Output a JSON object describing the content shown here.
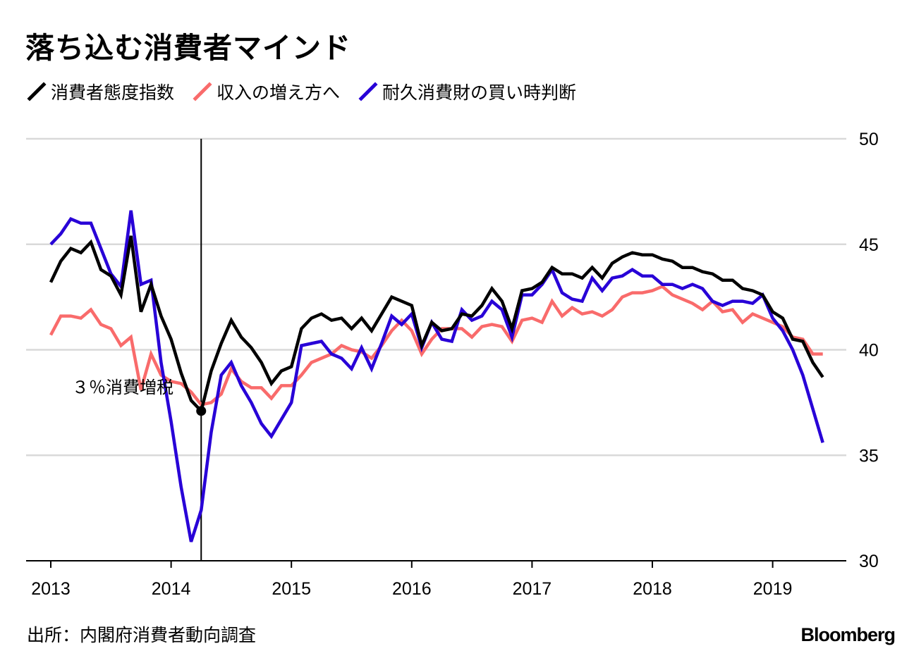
{
  "title": "落ち込む消費者マインド",
  "source": "出所：内閣府消費者動向調査",
  "brand": "Bloomberg",
  "chart_data": {
    "type": "line",
    "title": "落ち込む消費者マインド",
    "ylim": [
      30,
      50
    ],
    "yticks": [
      30,
      35,
      40,
      45,
      50
    ],
    "xlim": [
      2013,
      2019.58
    ],
    "xticks": [
      2013,
      2014,
      2015,
      2016,
      2017,
      2018,
      2019
    ],
    "xtick_labels": [
      "2013",
      "2014",
      "2015",
      "2016",
      "2017",
      "2018",
      "2019"
    ],
    "grid": true,
    "legend": "top-left",
    "annotation": {
      "label": "３％消費増税",
      "x": 2014.25,
      "y": 37.1
    },
    "series": [
      {
        "name": "消費者態度指数",
        "color": "#000000",
        "values": [
          43.2,
          44.2,
          44.8,
          44.6,
          45.1,
          43.8,
          43.5,
          42.6,
          45.4,
          41.8,
          43.1,
          41.6,
          40.5,
          38.9,
          37.6,
          37.1,
          39.0,
          40.3,
          41.4,
          40.6,
          40.1,
          39.4,
          38.4,
          39.0,
          39.2,
          41.0,
          41.5,
          41.7,
          41.4,
          41.5,
          41.0,
          41.5,
          40.9,
          41.7,
          42.5,
          42.3,
          42.1,
          40.2,
          41.3,
          40.9,
          41.0,
          41.7,
          41.6,
          42.1,
          42.9,
          42.3,
          41.0,
          42.8,
          42.9,
          43.2,
          43.9,
          43.6,
          43.6,
          43.4,
          43.9,
          43.4,
          44.1,
          44.4,
          44.6,
          44.5,
          44.5,
          44.3,
          44.2,
          43.9,
          43.9,
          43.7,
          43.6,
          43.3,
          43.3,
          42.9,
          42.8,
          42.6,
          41.8,
          41.5,
          40.5,
          40.4,
          39.4,
          38.7
        ]
      },
      {
        "name": "収入の増え方へ",
        "color": "#f96b6b",
        "values": [
          40.7,
          41.6,
          41.6,
          41.5,
          41.9,
          41.2,
          41.0,
          40.2,
          40.6,
          38.1,
          39.8,
          38.8,
          38.5,
          38.4,
          38.0,
          37.4,
          37.5,
          37.9,
          39.1,
          38.5,
          38.2,
          38.2,
          37.7,
          38.3,
          38.3,
          38.8,
          39.4,
          39.6,
          39.8,
          40.2,
          40.0,
          39.9,
          39.6,
          40.2,
          40.9,
          41.4,
          40.9,
          39.8,
          40.5,
          41.0,
          41.0,
          41.0,
          40.6,
          41.1,
          41.2,
          41.1,
          40.4,
          41.4,
          41.5,
          41.3,
          42.3,
          41.6,
          42.0,
          41.7,
          41.8,
          41.6,
          41.9,
          42.5,
          42.7,
          42.7,
          42.8,
          43.0,
          42.6,
          42.4,
          42.2,
          41.9,
          42.3,
          41.8,
          41.9,
          41.3,
          41.7,
          41.5,
          41.3,
          41.1,
          40.6,
          40.5,
          39.8,
          39.8
        ]
      },
      {
        "name": "耐久消費財の買い時判断",
        "color": "#2800d7",
        "values": [
          45.0,
          45.5,
          46.2,
          46.0,
          46.0,
          44.8,
          43.6,
          43.0,
          46.6,
          43.1,
          43.3,
          39.4,
          36.6,
          33.5,
          30.9,
          32.4,
          36.1,
          38.8,
          39.4,
          38.3,
          37.5,
          36.5,
          35.9,
          36.7,
          37.5,
          40.2,
          40.3,
          40.4,
          39.8,
          39.6,
          39.1,
          40.1,
          39.1,
          40.3,
          41.6,
          41.2,
          41.7,
          40.1,
          41.3,
          40.5,
          40.4,
          41.9,
          41.4,
          41.6,
          42.3,
          41.9,
          40.6,
          42.6,
          42.6,
          43.1,
          43.8,
          42.7,
          42.4,
          42.3,
          43.4,
          42.8,
          43.4,
          43.5,
          43.8,
          43.5,
          43.5,
          43.1,
          43.1,
          42.9,
          43.1,
          42.9,
          42.3,
          42.1,
          42.3,
          42.3,
          42.2,
          42.6,
          41.5,
          40.9,
          40.0,
          38.8,
          37.2,
          35.6
        ]
      }
    ]
  }
}
